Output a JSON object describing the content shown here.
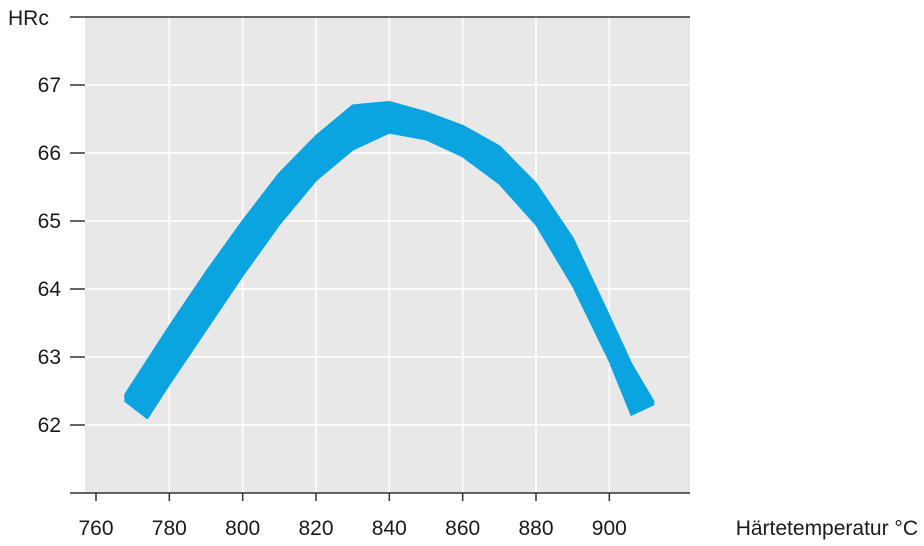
{
  "chart_data": {
    "type": "area",
    "title": "",
    "xlabel": "Härtetemperatur °C",
    "ylabel": "HRc",
    "xlim": [
      757,
      922
    ],
    "ylim": [
      61,
      68
    ],
    "x_ticks": [
      760,
      780,
      800,
      820,
      840,
      860,
      880,
      900
    ],
    "y_ticks": [
      62,
      63,
      64,
      65,
      66,
      67
    ],
    "grid": true,
    "plot_background": "#e8e8e8",
    "band_color": "#0aa5e0",
    "series": [
      {
        "kind": "band",
        "x": [
          768,
          774,
          780,
          790,
          800,
          810,
          820,
          830,
          840,
          850,
          860,
          870,
          880,
          890,
          900,
          906,
          912
        ],
        "upper": [
          62.45,
          62.95,
          63.45,
          64.25,
          65.0,
          65.7,
          66.25,
          66.7,
          66.75,
          66.6,
          66.4,
          66.1,
          65.55,
          64.75,
          63.6,
          62.9,
          62.35
        ],
        "lower": [
          62.35,
          62.1,
          62.6,
          63.4,
          64.2,
          64.95,
          65.6,
          66.05,
          66.3,
          66.2,
          65.95,
          65.55,
          64.95,
          64.05,
          62.95,
          62.15,
          62.3
        ]
      }
    ]
  }
}
